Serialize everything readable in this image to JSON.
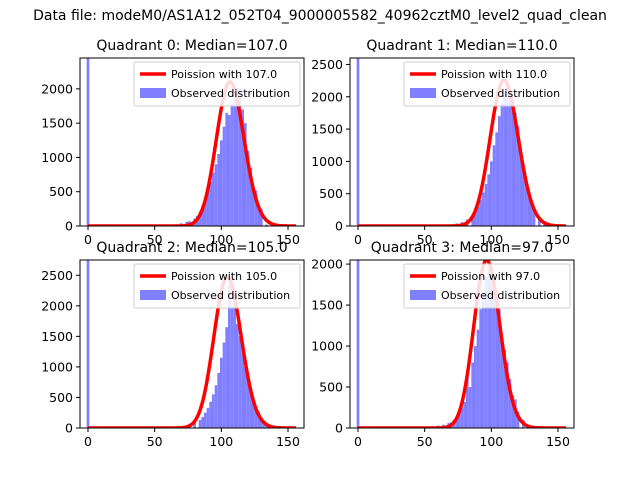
{
  "figure_title": "Data file: modeM0/AS1A12_052T04_9000005582_40962cztM0_level2_quad_clean",
  "colors": {
    "poisson": "#ff0000",
    "hist": "#7f7fff",
    "axes": "#000000"
  },
  "chart_data": [
    {
      "type": "bar",
      "title": "Quadrant 0: Median=107.0",
      "median": 107.0,
      "xlim": [
        -6,
        162
      ],
      "ylim": [
        0,
        2450
      ],
      "xticks": [
        0,
        50,
        100,
        150
      ],
      "xtick_labels": [
        "0",
        "50",
        "100",
        "150"
      ],
      "yticks": [
        0,
        500,
        1000,
        1500,
        2000
      ],
      "ytick_labels": [
        "0",
        "500",
        "1000",
        "1500",
        "2000"
      ],
      "legend": [
        "Poission with 107.0",
        "Observed distribution"
      ],
      "zero_bin_count": 2450,
      "hist_centers": [
        62,
        66,
        70,
        74,
        76,
        80,
        82,
        84,
        86,
        88,
        90,
        92,
        94,
        96,
        98,
        100,
        102,
        104,
        106,
        108,
        110,
        112,
        114,
        116,
        118,
        120,
        122,
        124,
        126,
        128,
        130,
        134,
        138
      ],
      "hist_values": [
        10,
        25,
        40,
        60,
        70,
        110,
        150,
        210,
        300,
        400,
        520,
        640,
        780,
        900,
        1050,
        1250,
        1450,
        1650,
        1620,
        1780,
        1950,
        2000,
        2000,
        1700,
        1500,
        1100,
        850,
        550,
        520,
        270,
        250,
        20,
        5
      ]
    },
    {
      "type": "bar",
      "title": "Quadrant 1: Median=110.0",
      "median": 110.0,
      "xlim": [
        -6,
        162
      ],
      "ylim": [
        0,
        2600
      ],
      "xticks": [
        0,
        50,
        100,
        150
      ],
      "xtick_labels": [
        "0",
        "50",
        "100",
        "150"
      ],
      "yticks": [
        0,
        500,
        1000,
        1500,
        2000,
        2500
      ],
      "ytick_labels": [
        "0",
        "500",
        "1000",
        "1500",
        "2000",
        "2500"
      ],
      "legend": [
        "Poission with 110.0",
        "Observed distribution"
      ],
      "zero_bin_count": 2600,
      "hist_centers": [
        66,
        70,
        74,
        78,
        82,
        86,
        88,
        90,
        92,
        94,
        96,
        98,
        100,
        102,
        104,
        106,
        108,
        110,
        112,
        114,
        116,
        118,
        120,
        122,
        124,
        126,
        128,
        130,
        132,
        136,
        140,
        144
      ],
      "hist_values": [
        10,
        20,
        40,
        60,
        100,
        160,
        220,
        300,
        400,
        520,
        650,
        800,
        1000,
        1250,
        1450,
        1700,
        1900,
        2050,
        2150,
        2100,
        1900,
        1750,
        1550,
        1200,
        900,
        700,
        550,
        400,
        280,
        120,
        40,
        10
      ]
    },
    {
      "type": "bar",
      "title": "Quadrant 2: Median=105.0",
      "median": 105.0,
      "xlim": [
        -6,
        162
      ],
      "ylim": [
        0,
        2750
      ],
      "xticks": [
        0,
        50,
        100,
        150
      ],
      "xtick_labels": [
        "0",
        "50",
        "100",
        "150"
      ],
      "yticks": [
        0,
        500,
        1000,
        1500,
        2000,
        2500
      ],
      "ytick_labels": [
        "0",
        "500",
        "1000",
        "1500",
        "2000",
        "2500"
      ],
      "legend": [
        "Poission with 105.0",
        "Observed distribution"
      ],
      "zero_bin_count": 2750,
      "hist_centers": [
        64,
        68,
        72,
        76,
        80,
        84,
        86,
        88,
        90,
        92,
        94,
        96,
        98,
        100,
        102,
        104,
        106,
        108,
        110,
        112,
        114,
        116,
        118,
        120,
        122,
        124,
        126,
        128,
        130,
        132,
        134,
        138,
        142
      ],
      "hist_values": [
        10,
        25,
        40,
        60,
        90,
        130,
        180,
        250,
        330,
        430,
        550,
        700,
        900,
        1150,
        1400,
        1650,
        2350,
        2000,
        2000,
        1700,
        1500,
        1300,
        1000,
        850,
        650,
        450,
        350,
        260,
        180,
        120,
        80,
        30,
        10
      ]
    },
    {
      "type": "bar",
      "title": "Quadrant 3: Median=97.0",
      "median": 97.0,
      "xlim": [
        -6,
        162
      ],
      "ylim": [
        0,
        2050
      ],
      "xticks": [
        0,
        50,
        100,
        150
      ],
      "xtick_labels": [
        "0",
        "50",
        "100",
        "150"
      ],
      "yticks": [
        0,
        500,
        1000,
        1500,
        2000
      ],
      "ytick_labels": [
        "0",
        "500",
        "1000",
        "1500",
        "2000"
      ],
      "legend": [
        "Poission with 97.0",
        "Observed distribution"
      ],
      "zero_bin_count": 2050,
      "hist_centers": [
        44,
        48,
        52,
        56,
        60,
        64,
        68,
        70,
        72,
        74,
        76,
        78,
        80,
        82,
        84,
        86,
        88,
        90,
        92,
        94,
        96,
        98,
        100,
        102,
        104,
        106,
        108,
        110,
        112,
        114,
        116,
        118,
        120,
        124,
        128,
        132
      ],
      "hist_values": [
        5,
        10,
        15,
        20,
        30,
        40,
        60,
        70,
        100,
        130,
        180,
        250,
        320,
        650,
        500,
        800,
        1000,
        1200,
        1450,
        1650,
        1850,
        1950,
        1800,
        1700,
        1600,
        1450,
        1050,
        950,
        800,
        600,
        400,
        350,
        200,
        100,
        40,
        15
      ]
    }
  ]
}
